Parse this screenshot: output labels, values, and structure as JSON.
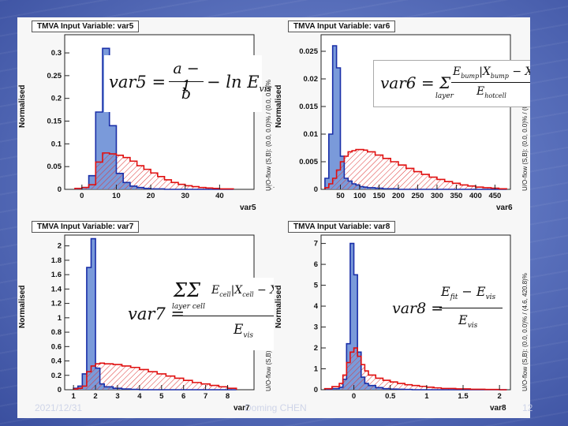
{
  "footer": {
    "date": "2021/12/31",
    "author": "Doming CHEN",
    "page_number": "12"
  },
  "chart_data": [
    {
      "type": "bar",
      "title": "TMVA Input Variable: var5",
      "xlabel": "var5",
      "ylabel": "Normalised",
      "uoflow": "U/O-flow (S,B): (0.0, 0.0)% / (0.0, 0.0)%",
      "xlim": [
        -5,
        50
      ],
      "ylim": [
        0,
        0.34
      ],
      "xticks": [
        0,
        10,
        20,
        30,
        40
      ],
      "yticks": [
        0,
        0.05,
        0.1,
        0.15,
        0.2,
        0.25,
        0.3
      ],
      "ytick_labels": [
        "0",
        "0.05",
        "0.1",
        "0.15",
        "0.2",
        "0.25",
        "0.3"
      ],
      "bin_edges": [
        -2,
        0,
        2,
        4,
        6,
        8,
        10,
        12,
        14,
        16,
        18,
        20,
        22,
        24,
        26,
        28,
        30,
        32,
        34,
        36,
        38,
        40,
        42,
        44
      ],
      "series": [
        {
          "name": "Signal",
          "values": [
            0.002,
            0.004,
            0.03,
            0.17,
            0.31,
            0.14,
            0.035,
            0.015,
            0.007,
            0.004,
            0.002,
            0.001,
            0.001,
            0.0,
            0.0,
            0.0,
            0.0,
            0.0,
            0.0,
            0.0,
            0.0,
            0.0,
            0.0
          ]
        },
        {
          "name": "Background",
          "values": [
            0.002,
            0.004,
            0.01,
            0.06,
            0.08,
            0.078,
            0.075,
            0.07,
            0.062,
            0.052,
            0.044,
            0.036,
            0.028,
            0.021,
            0.015,
            0.011,
            0.008,
            0.006,
            0.004,
            0.003,
            0.002,
            0.001,
            0.001
          ]
        }
      ],
      "formula": {
        "lhs": "var5",
        "num": "a − 1",
        "den": "b",
        "tail": "− ln E",
        "sub": "vis"
      }
    },
    {
      "type": "bar",
      "title": "TMVA Input Variable: var6",
      "xlabel": "var6",
      "ylabel": "Normalised",
      "uoflow": "U/O-flow (S,B): (0.0, 0.0)% / (0.0, 0.0)%",
      "xlim": [
        0,
        490
      ],
      "ylim": [
        0,
        0.028
      ],
      "xticks": [
        50,
        100,
        150,
        200,
        250,
        300,
        350,
        400,
        450
      ],
      "yticks": [
        0,
        0.005,
        0.01,
        0.015,
        0.02,
        0.025
      ],
      "ytick_labels": [
        "0",
        "0.005",
        "0.01",
        "0.015",
        "0.02",
        "0.025"
      ],
      "bin_edges": [
        10,
        20,
        30,
        40,
        50,
        60,
        70,
        80,
        90,
        100,
        110,
        120,
        140,
        160,
        180,
        200,
        220,
        240,
        260,
        280,
        300,
        320,
        340,
        360,
        380,
        400,
        420,
        440,
        460,
        480
      ],
      "series": [
        {
          "name": "Signal",
          "values": [
            0.002,
            0.01,
            0.026,
            0.022,
            0.006,
            0.002,
            0.0015,
            0.001,
            0.0008,
            0.0005,
            0.0004,
            0.0003,
            0.0002,
            0.0001,
            0.0001,
            0.0,
            0.0,
            0.0,
            0.0,
            0.0,
            0.0,
            0.0,
            0.0,
            0.0,
            0.0,
            0.0,
            0.0,
            0.0,
            0.0
          ]
        },
        {
          "name": "Background",
          "values": [
            0.0003,
            0.001,
            0.002,
            0.0035,
            0.005,
            0.006,
            0.0068,
            0.007,
            0.0072,
            0.0072,
            0.0071,
            0.0068,
            0.0062,
            0.0056,
            0.005,
            0.0044,
            0.0038,
            0.0032,
            0.0027,
            0.0022,
            0.0018,
            0.0014,
            0.0011,
            0.0008,
            0.0006,
            0.0004,
            0.0003,
            0.0002,
            0.0001
          ]
        }
      ],
      "formula": {
        "lhs": "var6",
        "text": "Σ E_bump |X_bump − X_C| / E_hotcell"
      }
    },
    {
      "type": "bar",
      "title": "TMVA Input Variable: var7",
      "xlabel": "var7",
      "ylabel": "Normalised",
      "uoflow": "U/O-flow (S,B): (0.0, 0.0)% / (0.0, 0.0)%",
      "xlim": [
        0.6,
        9.2
      ],
      "ylim": [
        0,
        2.15
      ],
      "xticks": [
        1,
        2,
        3,
        4,
        5,
        6,
        7,
        8
      ],
      "yticks": [
        0,
        0.2,
        0.4,
        0.6,
        0.8,
        1.0,
        1.2,
        1.4,
        1.6,
        1.8,
        2.0
      ],
      "ytick_labels": [
        "0",
        "0.2",
        "0.4",
        "0.6",
        "0.8",
        "1",
        "1.2",
        "1.4",
        "1.6",
        "1.8",
        "2"
      ],
      "bin_edges": [
        1.0,
        1.2,
        1.4,
        1.6,
        1.8,
        2.0,
        2.2,
        2.4,
        2.8,
        3.2,
        3.6,
        4.0,
        4.4,
        4.8,
        5.2,
        5.6,
        6.0,
        6.4,
        6.8,
        7.2,
        7.6,
        8.0,
        8.4
      ],
      "series": [
        {
          "name": "Signal",
          "values": [
            0.02,
            0.05,
            0.22,
            1.7,
            2.1,
            0.3,
            0.08,
            0.04,
            0.02,
            0.01,
            0.005,
            0.0,
            0.0,
            0.0,
            0.0,
            0.0,
            0.0,
            0.0,
            0.0,
            0.0,
            0.0,
            0.0
          ]
        },
        {
          "name": "Background",
          "values": [
            0.01,
            0.02,
            0.05,
            0.25,
            0.33,
            0.36,
            0.37,
            0.36,
            0.35,
            0.33,
            0.31,
            0.28,
            0.25,
            0.22,
            0.19,
            0.16,
            0.13,
            0.1,
            0.08,
            0.06,
            0.04,
            0.02
          ]
        }
      ],
      "formula": {
        "lhs": "var7",
        "text": "ΣΣ E_cell |X_cell − X_C| / E_vis"
      }
    },
    {
      "type": "bar",
      "title": "TMVA Input Variable: var8",
      "xlabel": "var8",
      "ylabel": "Normalised",
      "uoflow": "U/O-flow (S,B): (0.0, 0.0)% / (4.6, 420.8)%",
      "xlim": [
        -0.45,
        2.15
      ],
      "ylim": [
        0,
        7.4
      ],
      "xticks": [
        0,
        0.5,
        1,
        1.5,
        2
      ],
      "yticks": [
        0,
        1,
        2,
        3,
        4,
        5,
        6,
        7
      ],
      "ytick_labels": [
        "0",
        "1",
        "2",
        "3",
        "4",
        "5",
        "6",
        "7"
      ],
      "bin_edges": [
        -0.4,
        -0.3,
        -0.2,
        -0.15,
        -0.1,
        -0.05,
        0.0,
        0.05,
        0.1,
        0.15,
        0.2,
        0.3,
        0.4,
        0.5,
        0.6,
        0.7,
        0.8,
        0.9,
        1.0,
        1.1,
        1.2,
        1.4,
        1.6,
        1.8,
        2.0,
        2.1
      ],
      "series": [
        {
          "name": "Signal",
          "values": [
            0.02,
            0.05,
            0.12,
            0.5,
            2.2,
            7.0,
            5.5,
            1.8,
            0.6,
            0.3,
            0.2,
            0.1,
            0.05,
            0.03,
            0.02,
            0.01,
            0.0,
            0.0,
            0.0,
            0.0,
            0.0,
            0.0,
            0.0,
            0.0,
            0.0
          ]
        },
        {
          "name": "Background",
          "values": [
            0.05,
            0.15,
            0.3,
            0.7,
            1.3,
            1.8,
            2.0,
            1.6,
            1.2,
            0.9,
            0.7,
            0.55,
            0.45,
            0.37,
            0.3,
            0.24,
            0.2,
            0.16,
            0.12,
            0.09,
            0.06,
            0.04,
            0.02,
            0.01,
            0.0
          ]
        }
      ],
      "formula": {
        "lhs": "var8",
        "num": "E_fit − E_vis",
        "den": "E_vis"
      }
    }
  ]
}
